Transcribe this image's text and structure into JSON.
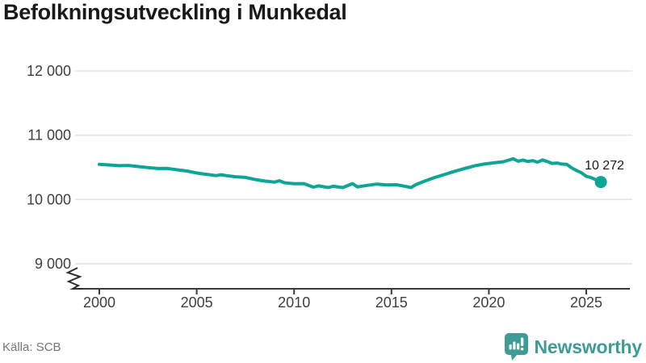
{
  "title": "Befolkningsutveckling i Munkedal",
  "source": "Källa: SCB",
  "branding": {
    "name": "Newsworthy",
    "color": "#3d9c95"
  },
  "chart_data": {
    "type": "line",
    "title": "Befolkningsutveckling i Munkedal",
    "xlabel": "",
    "ylabel": "",
    "x_range": [
      1999.2,
      2027.3
    ],
    "ylim": [
      9000,
      12000
    ],
    "axis_break": true,
    "grid": true,
    "legend": "none",
    "colors": {
      "line": "#0da596",
      "grid": "#e4e4e4",
      "axis": "#3a3a3a",
      "tick_text": "#3f3f3f"
    },
    "y_ticks": [
      {
        "value": 9000,
        "label": "9 000"
      },
      {
        "value": 10000,
        "label": "10 000"
      },
      {
        "value": 11000,
        "label": "11 000"
      },
      {
        "value": 12000,
        "label": "12 000"
      }
    ],
    "x_ticks": [
      {
        "value": 2000,
        "label": "2000"
      },
      {
        "value": 2005,
        "label": "2005"
      },
      {
        "value": 2010,
        "label": "2010"
      },
      {
        "value": 2015,
        "label": "2015"
      },
      {
        "value": 2020,
        "label": "2020"
      },
      {
        "value": 2025,
        "label": "2025"
      }
    ],
    "end_label": "10 272",
    "end_value": 10272,
    "series": [
      {
        "color": "#0da596",
        "points": [
          [
            2000,
            10548
          ],
          [
            2000.5,
            10538
          ],
          [
            2001,
            10526
          ],
          [
            2001.5,
            10530
          ],
          [
            2002,
            10512
          ],
          [
            2002.5,
            10496
          ],
          [
            2003,
            10482
          ],
          [
            2003.5,
            10484
          ],
          [
            2004,
            10462
          ],
          [
            2004.5,
            10444
          ],
          [
            2005,
            10414
          ],
          [
            2005.33,
            10398
          ],
          [
            2005.66,
            10386
          ],
          [
            2006,
            10372
          ],
          [
            2006.25,
            10386
          ],
          [
            2006.5,
            10372
          ],
          [
            2007,
            10354
          ],
          [
            2007.5,
            10344
          ],
          [
            2008,
            10312
          ],
          [
            2008.5,
            10286
          ],
          [
            2009,
            10272
          ],
          [
            2009.25,
            10292
          ],
          [
            2009.5,
            10262
          ],
          [
            2010,
            10246
          ],
          [
            2010.5,
            10248
          ],
          [
            2011,
            10192
          ],
          [
            2011.25,
            10212
          ],
          [
            2011.75,
            10186
          ],
          [
            2012,
            10206
          ],
          [
            2012.5,
            10186
          ],
          [
            2013,
            10248
          ],
          [
            2013.25,
            10196
          ],
          [
            2013.75,
            10220
          ],
          [
            2014.25,
            10240
          ],
          [
            2014.75,
            10226
          ],
          [
            2015.25,
            10230
          ],
          [
            2015.75,
            10202
          ],
          [
            2016,
            10186
          ],
          [
            2016.25,
            10232
          ],
          [
            2016.75,
            10292
          ],
          [
            2017.25,
            10346
          ],
          [
            2017.75,
            10392
          ],
          [
            2018.25,
            10440
          ],
          [
            2018.75,
            10482
          ],
          [
            2019.25,
            10522
          ],
          [
            2019.75,
            10552
          ],
          [
            2020.25,
            10570
          ],
          [
            2020.75,
            10588
          ],
          [
            2021.25,
            10634
          ],
          [
            2021.5,
            10596
          ],
          [
            2021.75,
            10614
          ],
          [
            2022,
            10592
          ],
          [
            2022.25,
            10606
          ],
          [
            2022.5,
            10580
          ],
          [
            2022.75,
            10616
          ],
          [
            2023,
            10592
          ],
          [
            2023.25,
            10562
          ],
          [
            2023.5,
            10568
          ],
          [
            2023.75,
            10552
          ],
          [
            2024,
            10548
          ],
          [
            2024.25,
            10492
          ],
          [
            2024.5,
            10452
          ],
          [
            2024.75,
            10416
          ],
          [
            2025,
            10362
          ],
          [
            2025.25,
            10340
          ],
          [
            2025.5,
            10308
          ],
          [
            2025.75,
            10272
          ]
        ]
      }
    ]
  }
}
